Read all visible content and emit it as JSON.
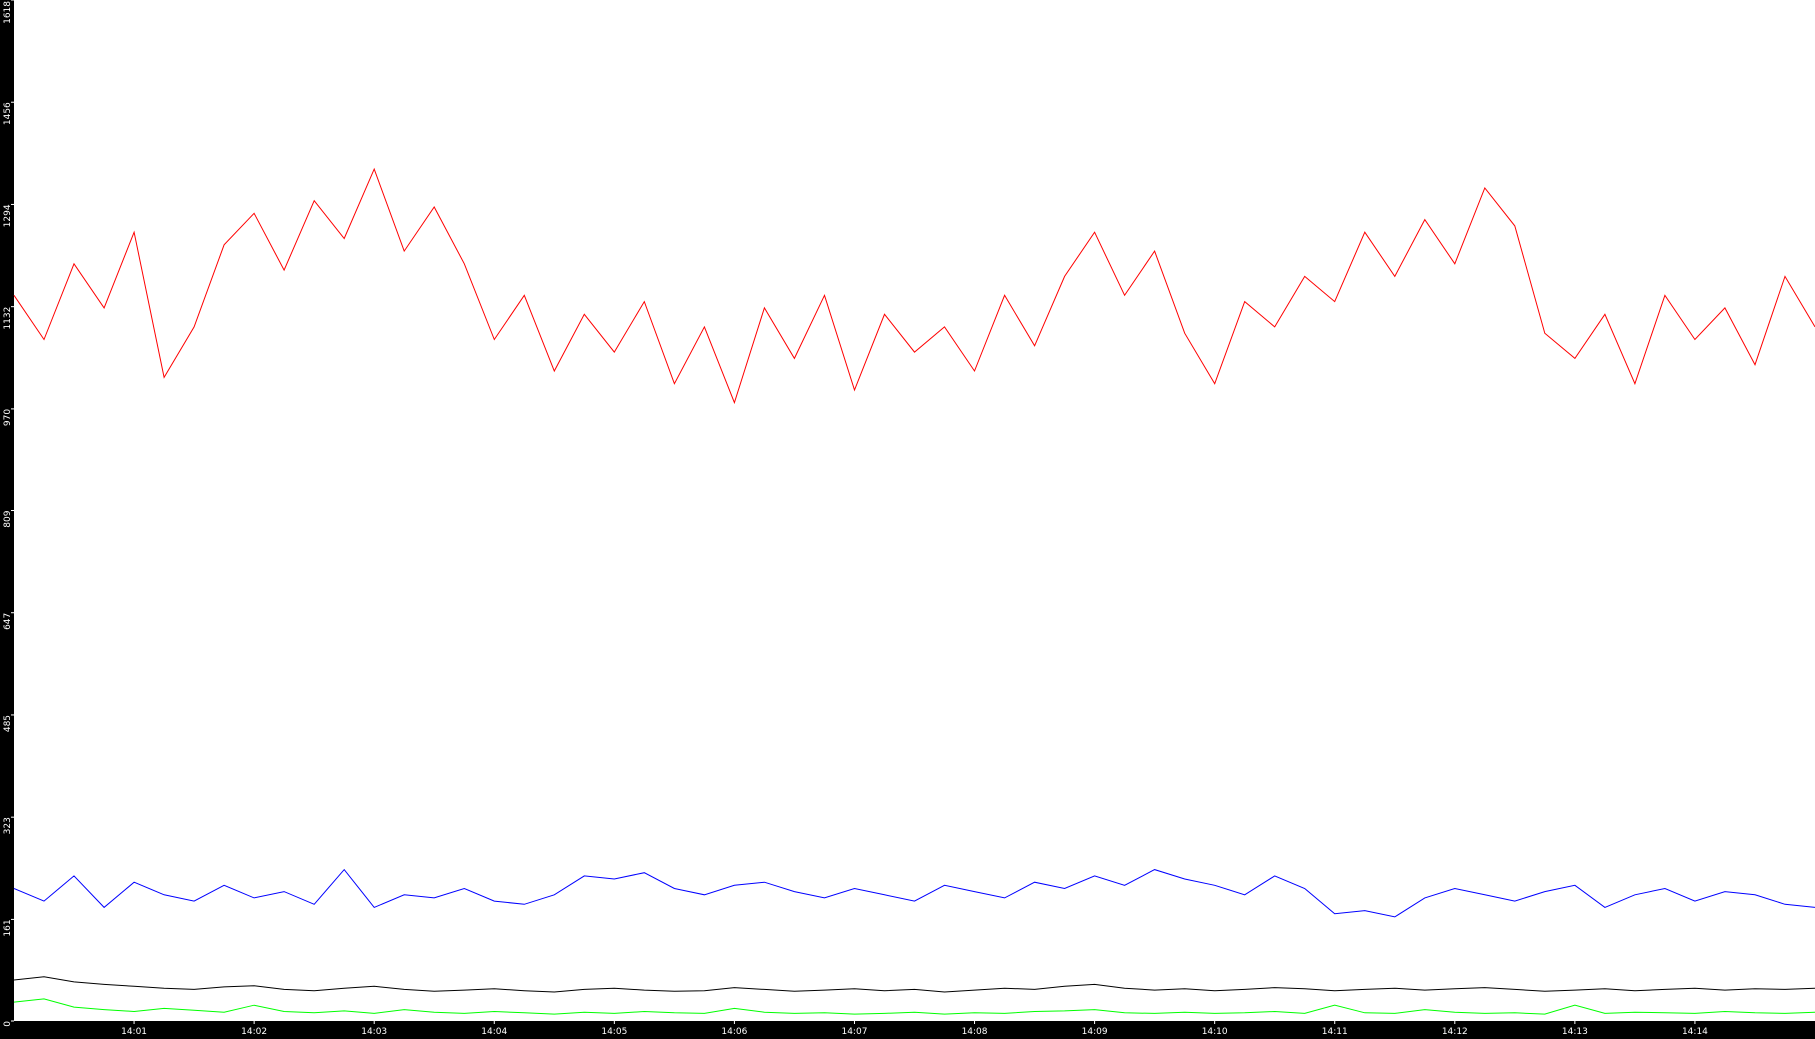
{
  "chart_data": {
    "type": "line",
    "x": [
      0,
      0.25,
      0.5,
      0.75,
      1,
      1.25,
      1.5,
      1.75,
      2,
      2.25,
      2.5,
      2.75,
      3,
      3.25,
      3.5,
      3.75,
      4,
      4.25,
      4.5,
      4.75,
      5,
      5.25,
      5.5,
      5.75,
      6,
      6.25,
      6.5,
      6.75,
      7,
      7.25,
      7.5,
      7.75,
      8,
      8.25,
      8.5,
      8.75,
      9,
      9.25,
      9.5,
      9.75,
      10,
      10.25,
      10.5,
      10.75,
      11,
      11.25,
      11.5,
      11.75,
      12,
      12.25,
      12.5,
      12.75,
      13,
      13.25,
      13.5,
      13.75,
      14,
      14.25,
      14.5,
      14.75,
      15
    ],
    "series": [
      {
        "color": "#ff0000",
        "values": [
          1150,
          1080,
          1200,
          1130,
          1250,
          1020,
          1100,
          1230,
          1280,
          1190,
          1300,
          1240,
          1350,
          1220,
          1290,
          1200,
          1080,
          1150,
          1030,
          1120,
          1060,
          1140,
          1010,
          1100,
          980,
          1130,
          1050,
          1150,
          1000,
          1120,
          1060,
          1100,
          1030,
          1150,
          1070,
          1180,
          1250,
          1150,
          1220,
          1090,
          1010,
          1140,
          1100,
          1180,
          1140,
          1250,
          1180,
          1270,
          1200,
          1320,
          1260,
          1090,
          1050,
          1120,
          1010,
          1150,
          1080,
          1130,
          1040,
          1180,
          1100
        ]
      },
      {
        "color": "#0000ff",
        "values": [
          210,
          190,
          230,
          180,
          220,
          200,
          190,
          215,
          195,
          205,
          185,
          240,
          180,
          200,
          195,
          210,
          190,
          185,
          200,
          230,
          225,
          235,
          210,
          200,
          215,
          220,
          205,
          195,
          210,
          200,
          190,
          215,
          205,
          195,
          220,
          210,
          230,
          215,
          240,
          225,
          215,
          200,
          230,
          210,
          170,
          175,
          165,
          195,
          210,
          200,
          190,
          205,
          215,
          180,
          200,
          210,
          190,
          205,
          200,
          185,
          180
        ]
      },
      {
        "color": "#000000",
        "values": [
          65,
          70,
          62,
          58,
          55,
          52,
          50,
          54,
          56,
          50,
          48,
          52,
          55,
          50,
          47,
          49,
          51,
          48,
          46,
          50,
          52,
          49,
          47,
          48,
          53,
          50,
          47,
          49,
          51,
          48,
          50,
          46,
          49,
          52,
          50,
          55,
          58,
          52,
          49,
          51,
          48,
          50,
          53,
          51,
          48,
          50,
          52,
          49,
          51,
          53,
          50,
          47,
          49,
          51,
          48,
          50,
          52,
          49,
          51,
          50,
          52
        ]
      },
      {
        "color": "#00ff00",
        "values": [
          30,
          35,
          22,
          18,
          15,
          20,
          17,
          14,
          25,
          15,
          13,
          16,
          12,
          18,
          14,
          12,
          15,
          13,
          11,
          14,
          12,
          15,
          13,
          12,
          20,
          14,
          12,
          13,
          11,
          12,
          14,
          11,
          13,
          12,
          15,
          16,
          18,
          13,
          12,
          14,
          12,
          13,
          15,
          12,
          25,
          13,
          12,
          18,
          14,
          12,
          13,
          11,
          25,
          12,
          14,
          13,
          12,
          15,
          13,
          12,
          14
        ]
      }
    ],
    "xlim": [
      0,
      15
    ],
    "xticks": [
      {
        "value": 1,
        "label": "14:01"
      },
      {
        "value": 2,
        "label": "14:02"
      },
      {
        "value": 3,
        "label": "14:03"
      },
      {
        "value": 4,
        "label": "14:04"
      },
      {
        "value": 5,
        "label": "14:05"
      },
      {
        "value": 6,
        "label": "14:06"
      },
      {
        "value": 7,
        "label": "14:07"
      },
      {
        "value": 8,
        "label": "14:08"
      },
      {
        "value": 9,
        "label": "14:09"
      },
      {
        "value": 10,
        "label": "14:10"
      },
      {
        "value": 11,
        "label": "14:11"
      },
      {
        "value": 12,
        "label": "14:12"
      },
      {
        "value": 13,
        "label": "14:13"
      },
      {
        "value": 14,
        "label": "14:14"
      }
    ],
    "ylim": [
      0,
      1618
    ],
    "yticks": [
      0,
      161,
      323,
      485,
      647,
      809,
      970,
      1132,
      1294,
      1456,
      1618
    ]
  }
}
